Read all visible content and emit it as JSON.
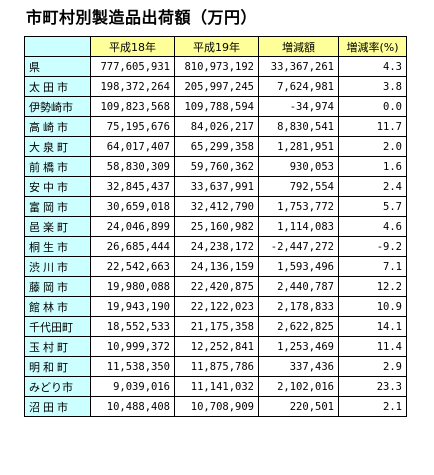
{
  "title": "市町村別製造品出荷額（万円）",
  "columns": [
    "",
    "平成18年",
    "平成19年",
    "増減額",
    "増減率(%)"
  ],
  "rows": [
    {
      "name": "県",
      "h18": "777,605,931",
      "h19": "810,973,192",
      "diff": "33,367,261",
      "rate": "4.3"
    },
    {
      "name": "太田市",
      "h18": "198,372,264",
      "h19": "205,997,245",
      "diff": "7,624,981",
      "rate": "3.8"
    },
    {
      "name": "伊勢崎市",
      "h18": "109,823,568",
      "h19": "109,788,594",
      "diff": "-34,974",
      "rate": "0.0"
    },
    {
      "name": "高崎市",
      "h18": "75,195,676",
      "h19": "84,026,217",
      "diff": "8,830,541",
      "rate": "11.7"
    },
    {
      "name": "大泉町",
      "h18": "64,017,407",
      "h19": "65,299,358",
      "diff": "1,281,951",
      "rate": "2.0"
    },
    {
      "name": "前橋市",
      "h18": "58,830,309",
      "h19": "59,760,362",
      "diff": "930,053",
      "rate": "1.6"
    },
    {
      "name": "安中市",
      "h18": "32,845,437",
      "h19": "33,637,991",
      "diff": "792,554",
      "rate": "2.4"
    },
    {
      "name": "富岡市",
      "h18": "30,659,018",
      "h19": "32,412,790",
      "diff": "1,753,772",
      "rate": "5.7"
    },
    {
      "name": "邑楽町",
      "h18": "24,046,899",
      "h19": "25,160,982",
      "diff": "1,114,083",
      "rate": "4.6"
    },
    {
      "name": "桐生市",
      "h18": "26,685,444",
      "h19": "24,238,172",
      "diff": "-2,447,272",
      "rate": "-9.2"
    },
    {
      "name": "渋川市",
      "h18": "22,542,663",
      "h19": "24,136,159",
      "diff": "1,593,496",
      "rate": "7.1"
    },
    {
      "name": "藤岡市",
      "h18": "19,980,088",
      "h19": "22,420,875",
      "diff": "2,440,787",
      "rate": "12.2"
    },
    {
      "name": "館林市",
      "h18": "19,943,190",
      "h19": "22,122,023",
      "diff": "2,178,833",
      "rate": "10.9"
    },
    {
      "name": "千代田町",
      "h18": "18,552,533",
      "h19": "21,175,358",
      "diff": "2,622,825",
      "rate": "14.1"
    },
    {
      "name": "玉村町",
      "h18": "10,999,372",
      "h19": "12,252,841",
      "diff": "1,253,469",
      "rate": "11.4"
    },
    {
      "name": "明和町",
      "h18": "11,538,350",
      "h19": "11,875,786",
      "diff": "337,436",
      "rate": "2.9"
    },
    {
      "name": "みどり市",
      "h18": "9,039,016",
      "h19": "11,141,032",
      "diff": "2,102,016",
      "rate": "23.3"
    },
    {
      "name": "沼田市",
      "h18": "10,488,408",
      "h19": "10,708,909",
      "diff": "220,501",
      "rate": "2.1"
    }
  ],
  "colors": {
    "header_bg": "#ffff99",
    "name_bg": "#ccffff",
    "negative": "#ff0000"
  }
}
